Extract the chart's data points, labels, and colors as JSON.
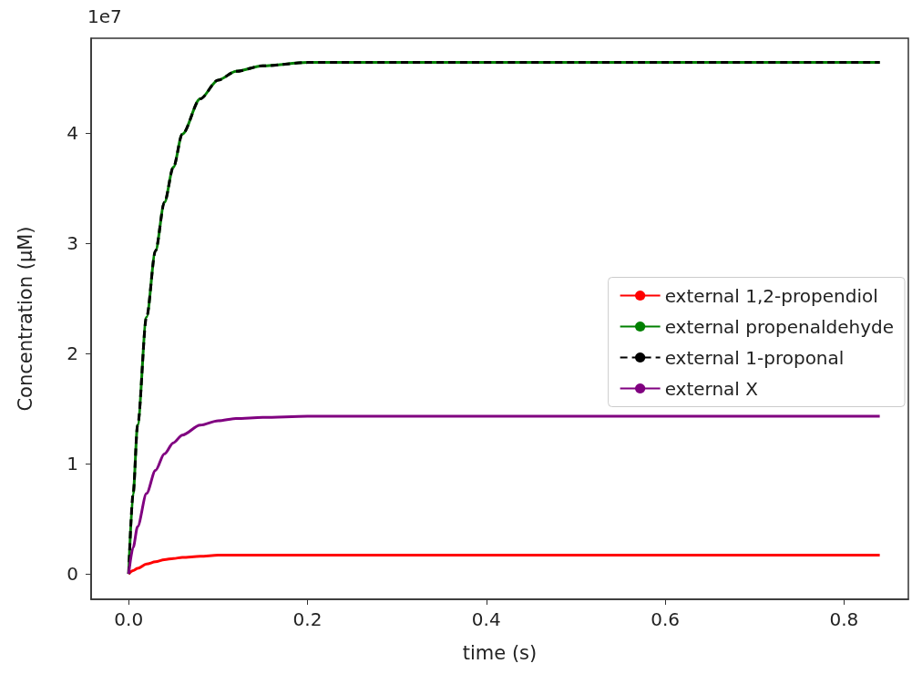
{
  "chart_data": {
    "type": "line",
    "xlabel": "time (s)",
    "ylabel": "Concentration (μM)",
    "annotations": [
      "1e7"
    ],
    "x": [
      0,
      0.005,
      0.01,
      0.02,
      0.03,
      0.04,
      0.05,
      0.06,
      0.08,
      0.1,
      0.12,
      0.15,
      0.2,
      0.3,
      0.5,
      0.84
    ],
    "series": [
      {
        "name": "external 1,2-propendiol",
        "color": "#ff0000",
        "values": [
          0,
          0.03,
          0.05,
          0.09,
          0.11,
          0.13,
          0.14,
          0.15,
          0.16,
          0.17,
          0.17,
          0.17,
          0.17,
          0.17,
          0.17,
          0.17
        ]
      },
      {
        "name": "external propenaldehyde",
        "color": "#008000",
        "values": [
          0,
          0.73,
          1.35,
          2.33,
          2.93,
          3.37,
          3.69,
          3.99,
          4.31,
          4.48,
          4.56,
          4.61,
          4.64,
          4.64,
          4.64,
          4.64
        ]
      },
      {
        "name": "external 1-proponal",
        "color": "#000000",
        "line_style": "dashed",
        "values": [
          0,
          0.73,
          1.35,
          2.33,
          2.93,
          3.37,
          3.69,
          3.99,
          4.31,
          4.48,
          4.56,
          4.61,
          4.64,
          4.64,
          4.64,
          4.64
        ]
      },
      {
        "name": "external X",
        "color": "#800080",
        "values": [
          0,
          0.24,
          0.43,
          0.73,
          0.94,
          1.09,
          1.19,
          1.26,
          1.35,
          1.39,
          1.41,
          1.42,
          1.43,
          1.43,
          1.43,
          1.43
        ]
      }
    ],
    "xlim": [
      -0.042,
      0.872
    ],
    "xticks": [
      {
        "value": 0,
        "label": "0.0"
      },
      0.2,
      0.4,
      0.6,
      0.8
    ],
    "ylim": [
      -0.23,
      4.86
    ],
    "yticks": [
      0,
      1,
      2,
      3,
      4
    ],
    "grid": false,
    "legend": "center right",
    "line_style": "solid",
    "marker": "none"
  }
}
